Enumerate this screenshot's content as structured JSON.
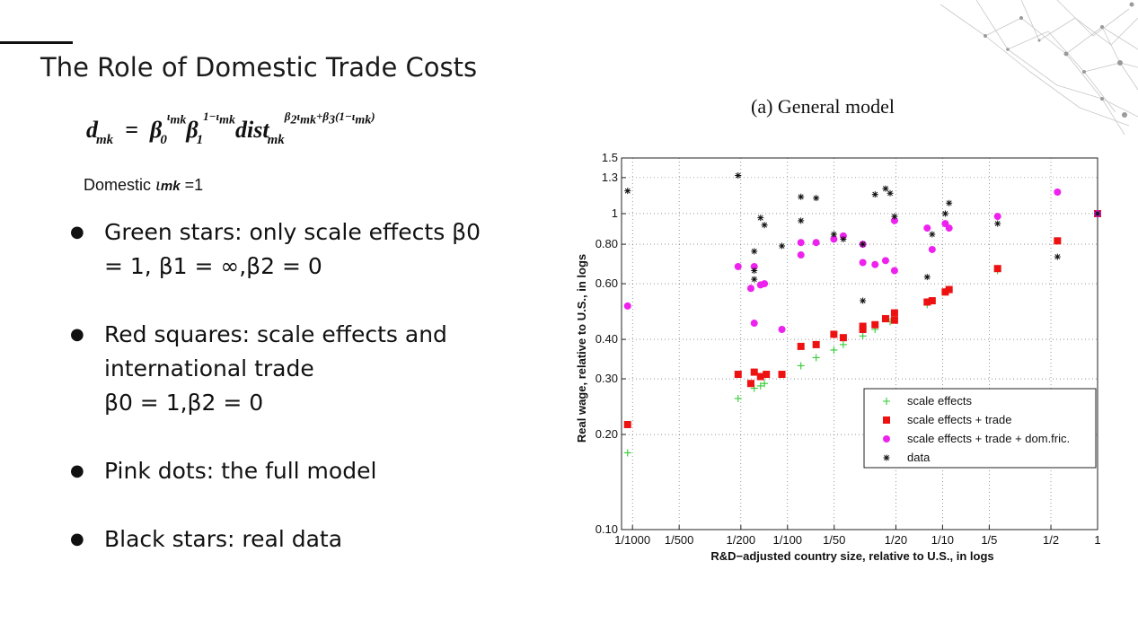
{
  "slide": {
    "title": "The Role of Domestic Trade Costs",
    "domestic_note": "Domestic",
    "domestic_value": "=1",
    "bullets": [
      {
        "line1": "Green stars: only scale effects  β0",
        "line2": "= 1, β1 = ∞,β2 = 0",
        "line3": ""
      },
      {
        "line1": "Red squares: scale effects and",
        "line2": "international trade",
        "line3": "β0 = 1,β2 = 0"
      },
      {
        "line1": "Pink dots: the full model",
        "line2": "",
        "line3": ""
      },
      {
        "line1": "Black stars: real data",
        "line2": "",
        "line3": ""
      }
    ]
  },
  "chart_data": {
    "type": "scatter",
    "title": "(a) General model",
    "xlabel": "R&D−adjusted country size, relative to U.S., in logs",
    "ylabel": "Real wage, relative to U.S., in logs",
    "x_scale": "log",
    "y_scale": "log",
    "xlim": [
      0.00085,
      1
    ],
    "ylim": [
      0.1,
      1.5
    ],
    "x_ticks": [
      {
        "value": 0.001,
        "label": "1/1000"
      },
      {
        "value": 0.002,
        "label": "1/500"
      },
      {
        "value": 0.005,
        "label": "1/200"
      },
      {
        "value": 0.01,
        "label": "1/100"
      },
      {
        "value": 0.02,
        "label": "1/50"
      },
      {
        "value": 0.05,
        "label": "1/20"
      },
      {
        "value": 0.1,
        "label": "1/10"
      },
      {
        "value": 0.2,
        "label": "1/5"
      },
      {
        "value": 0.5,
        "label": "1/2"
      },
      {
        "value": 1,
        "label": "1"
      }
    ],
    "y_ticks": [
      {
        "value": 0.1,
        "label": "0.10"
      },
      {
        "value": 0.2,
        "label": "0.20"
      },
      {
        "value": 0.3,
        "label": "0.30"
      },
      {
        "value": 0.4,
        "label": "0.40"
      },
      {
        "value": 0.6,
        "label": "0.60"
      },
      {
        "value": 0.8,
        "label": "0.80"
      },
      {
        "value": 1,
        "label": "1"
      },
      {
        "value": 1.3,
        "label": "1.3"
      },
      {
        "value": 1.5,
        "label": "1.5"
      }
    ],
    "grid": true,
    "legend_position": "bottom-right",
    "series": [
      {
        "name": "scale effects",
        "marker": "plus",
        "color": "#33cc33",
        "points": [
          [
            0.00093,
            0.175
          ],
          [
            0.0048,
            0.26
          ],
          [
            0.0061,
            0.28
          ],
          [
            0.0067,
            0.285
          ],
          [
            0.0071,
            0.29
          ],
          [
            0.0122,
            0.33
          ],
          [
            0.0153,
            0.35
          ],
          [
            0.0199,
            0.37
          ],
          [
            0.0229,
            0.385
          ],
          [
            0.0306,
            0.41
          ],
          [
            0.0367,
            0.43
          ],
          [
            0.0459,
            0.455
          ],
          [
            0.049,
            0.465
          ],
          [
            0.0796,
            0.515
          ],
          [
            0.0857,
            0.53
          ],
          [
            0.1041,
            0.565
          ],
          [
            0.1102,
            0.575
          ],
          [
            0.2265,
            0.66
          ],
          [
            0.5511,
            0.82
          ],
          [
            1,
            1
          ]
        ]
      },
      {
        "name": "scale effects + trade",
        "marker": "square",
        "color": "#ee1111",
        "points": [
          [
            0.00093,
            0.215
          ],
          [
            0.0048,
            0.31
          ],
          [
            0.0058,
            0.29
          ],
          [
            0.0061,
            0.315
          ],
          [
            0.0067,
            0.305
          ],
          [
            0.0073,
            0.31
          ],
          [
            0.0092,
            0.31
          ],
          [
            0.0122,
            0.38
          ],
          [
            0.0153,
            0.385
          ],
          [
            0.0199,
            0.415
          ],
          [
            0.0229,
            0.405
          ],
          [
            0.0306,
            0.43
          ],
          [
            0.0306,
            0.44
          ],
          [
            0.0367,
            0.445
          ],
          [
            0.0429,
            0.465
          ],
          [
            0.049,
            0.46
          ],
          [
            0.049,
            0.485
          ],
          [
            0.0796,
            0.525
          ],
          [
            0.0857,
            0.53
          ],
          [
            0.1041,
            0.565
          ],
          [
            0.1102,
            0.575
          ],
          [
            0.2265,
            0.67
          ],
          [
            0.5511,
            0.82
          ],
          [
            1,
            1
          ]
        ]
      },
      {
        "name": "scale effects + trade + dom.fric.",
        "marker": "circle",
        "color": "#ee22ee",
        "points": [
          [
            0.00093,
            0.51
          ],
          [
            0.0048,
            0.68
          ],
          [
            0.0058,
            0.58
          ],
          [
            0.0061,
            0.68
          ],
          [
            0.0061,
            0.45
          ],
          [
            0.0067,
            0.595
          ],
          [
            0.0071,
            0.6
          ],
          [
            0.0092,
            0.43
          ],
          [
            0.0122,
            0.81
          ],
          [
            0.0122,
            0.74
          ],
          [
            0.0153,
            0.81
          ],
          [
            0.0199,
            0.83
          ],
          [
            0.0229,
            0.85
          ],
          [
            0.0306,
            0.7
          ],
          [
            0.0306,
            0.8
          ],
          [
            0.0367,
            0.69
          ],
          [
            0.0429,
            0.71
          ],
          [
            0.049,
            0.66
          ],
          [
            0.049,
            0.95
          ],
          [
            0.0796,
            0.9
          ],
          [
            0.0857,
            0.77
          ],
          [
            0.1041,
            0.93
          ],
          [
            0.1102,
            0.9
          ],
          [
            0.2265,
            0.98
          ],
          [
            0.5511,
            1.17
          ],
          [
            1,
            1
          ]
        ]
      },
      {
        "name": "data",
        "marker": "star",
        "color": "#111111",
        "points": [
          [
            0.00093,
            1.18
          ],
          [
            0.0048,
            1.32
          ],
          [
            0.0061,
            0.76
          ],
          [
            0.0061,
            0.66
          ],
          [
            0.0061,
            0.62
          ],
          [
            0.0067,
            0.97
          ],
          [
            0.0071,
            0.92
          ],
          [
            0.0092,
            0.79
          ],
          [
            0.0122,
            1.13
          ],
          [
            0.0122,
            0.95
          ],
          [
            0.0153,
            1.12
          ],
          [
            0.0199,
            0.86
          ],
          [
            0.0229,
            0.83
          ],
          [
            0.0306,
            0.8
          ],
          [
            0.0306,
            0.53
          ],
          [
            0.0367,
            1.15
          ],
          [
            0.0429,
            1.2
          ],
          [
            0.0459,
            1.16
          ],
          [
            0.049,
            0.98
          ],
          [
            0.0796,
            0.63
          ],
          [
            0.0857,
            0.86
          ],
          [
            0.1041,
            1.0
          ],
          [
            0.1102,
            1.08
          ],
          [
            0.2265,
            0.93
          ],
          [
            0.5511,
            0.73
          ],
          [
            1,
            1
          ]
        ]
      }
    ]
  }
}
